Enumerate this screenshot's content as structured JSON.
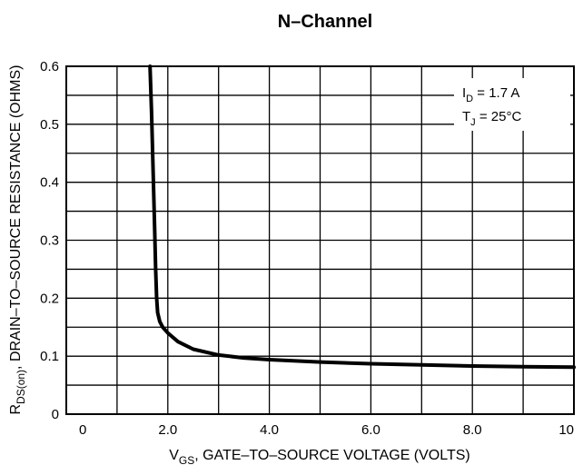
{
  "chart_data": {
    "type": "line",
    "title": "N–Channel",
    "xlabel": {
      "main": "V",
      "sub": "GS",
      "rest": ", GATE–TO–SOURCE VOLTAGE (VOLTS)"
    },
    "ylabel": {
      "main": "R",
      "sub": "DS(on)",
      "rest": ", DRAIN–TO–SOURCE RESISTANCE (OHMS)"
    },
    "xlim": [
      0,
      10
    ],
    "ylim": [
      0,
      0.6
    ],
    "x_tick_labels": [
      "0",
      "2.0",
      "4.0",
      "6.0",
      "8.0",
      "10"
    ],
    "x_tick_values": [
      0,
      2,
      4,
      6,
      8,
      10
    ],
    "y_tick_labels": [
      "0",
      "0.1",
      "0.2",
      "0.3",
      "0.4",
      "0.5",
      "0.6"
    ],
    "y_tick_values": [
      0,
      0.1,
      0.2,
      0.3,
      0.4,
      0.5,
      0.6
    ],
    "grid": true,
    "annotations": [
      {
        "main": "I",
        "sub": "D",
        "rest": " = 1.7 A"
      },
      {
        "main": "T",
        "sub": "J",
        "rest": " = 25°C"
      }
    ],
    "series": [
      {
        "x": [
          1.65,
          1.68,
          1.71,
          1.74,
          1.76,
          1.78,
          1.8,
          1.84,
          1.9,
          2.0,
          2.2,
          2.5,
          3.0,
          3.5,
          4.0,
          5.0,
          6.0,
          7.0,
          8.0,
          9.0,
          10.0
        ],
        "y": [
          0.6,
          0.52,
          0.42,
          0.32,
          0.25,
          0.2,
          0.175,
          0.16,
          0.15,
          0.14,
          0.125,
          0.112,
          0.102,
          0.097,
          0.094,
          0.09,
          0.087,
          0.085,
          0.083,
          0.082,
          0.081
        ]
      }
    ]
  }
}
